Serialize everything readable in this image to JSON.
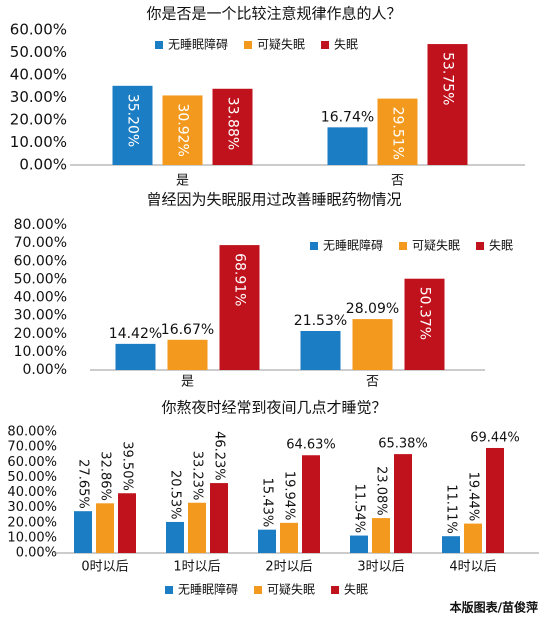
{
  "chart_data": [
    {
      "type": "bar",
      "title": "你是否是一个比较注意规律作息的人？",
      "categories": [
        "是",
        "否"
      ],
      "series": [
        {
          "name": "无睡眠障碍",
          "color": "#1b7dc4",
          "values": [
            35.2,
            16.74
          ],
          "value_labels": [
            "35.20%",
            "16.74%"
          ]
        },
        {
          "name": "可疑失眠",
          "color": "#f39a1e",
          "values": [
            30.92,
            29.51
          ],
          "value_labels": [
            "30.92%",
            "29.51%"
          ]
        },
        {
          "name": "失眠",
          "color": "#c0121c",
          "values": [
            33.88,
            53.75
          ],
          "value_labels": [
            "33.88%",
            "53.75%"
          ]
        }
      ],
      "ylim": [
        0,
        60
      ],
      "yticks": [
        {
          "value": 0,
          "label": "0.00%"
        },
        {
          "value": 10,
          "label": "10.00%"
        },
        {
          "value": 20,
          "label": "20.00%"
        },
        {
          "value": 30,
          "label": "30.00%"
        },
        {
          "value": 40,
          "label": "40.00%"
        },
        {
          "value": 50,
          "label": "50.00%"
        },
        {
          "value": 60,
          "label": "60.00%"
        }
      ],
      "grid": false,
      "legend": "top"
    },
    {
      "type": "bar",
      "title": "曾经因为失眠服用过改善睡眠药物情况",
      "categories": [
        "是",
        "否"
      ],
      "series": [
        {
          "name": "无睡眠障碍",
          "color": "#1b7dc4",
          "values": [
            14.42,
            21.53
          ],
          "value_labels": [
            "14.42%",
            "21.53%"
          ]
        },
        {
          "name": "可疑失眠",
          "color": "#f39a1e",
          "values": [
            16.67,
            28.09
          ],
          "value_labels": [
            "16.67%",
            "28.09%"
          ]
        },
        {
          "name": "失眠",
          "color": "#c0121c",
          "values": [
            68.91,
            50.37
          ],
          "value_labels": [
            "68.91%",
            "50.37%"
          ]
        }
      ],
      "ylim": [
        0,
        80
      ],
      "yticks": [
        {
          "value": 0,
          "label": "0.00%"
        },
        {
          "value": 10,
          "label": "10.00%"
        },
        {
          "value": 20,
          "label": "20.00%"
        },
        {
          "value": 30,
          "label": "30.00%"
        },
        {
          "value": 40,
          "label": "40.00%"
        },
        {
          "value": 50,
          "label": "50.00%"
        },
        {
          "value": 60,
          "label": "60.00%"
        },
        {
          "value": 70,
          "label": "70.00%"
        },
        {
          "value": 80,
          "label": "80.00%"
        }
      ],
      "grid": false,
      "legend": "top-right"
    },
    {
      "type": "bar",
      "title": "你熬夜时经常到夜间几点才睡觉？",
      "categories": [
        "0时以后",
        "1时以后",
        "2时以后",
        "3时以后",
        "4时以后"
      ],
      "series": [
        {
          "name": "无睡眠障碍",
          "color": "#1b7dc4",
          "values": [
            27.65,
            20.53,
            15.43,
            11.54,
            11.11
          ],
          "value_labels": [
            "27.65%",
            "20.53%",
            "15.43%",
            "11.54%",
            "11.11%"
          ]
        },
        {
          "name": "可疑失眠",
          "color": "#f39a1e",
          "values": [
            32.86,
            33.23,
            19.94,
            23.08,
            19.44
          ],
          "value_labels": [
            "32.86%",
            "33.23%",
            "19.94%",
            "23.08%",
            "19.44%"
          ]
        },
        {
          "name": "失眠",
          "color": "#c0121c",
          "values": [
            39.5,
            46.23,
            64.63,
            65.38,
            69.44
          ],
          "value_labels": [
            "39.50%",
            "46.23%",
            "64.63%",
            "65.38%",
            "69.44%"
          ]
        }
      ],
      "ylim": [
        0,
        80
      ],
      "yticks": [
        {
          "value": 0,
          "label": "0.00%"
        },
        {
          "value": 10,
          "label": "10.00%"
        },
        {
          "value": 20,
          "label": "20.00%"
        },
        {
          "value": 30,
          "label": "30.00%"
        },
        {
          "value": 40,
          "label": "40.00%"
        },
        {
          "value": 50,
          "label": "50.00%"
        },
        {
          "value": 60,
          "label": "60.00%"
        },
        {
          "value": 70,
          "label": "70.00%"
        },
        {
          "value": 80,
          "label": "80.00%"
        }
      ],
      "grid": false,
      "legend": "bottom"
    }
  ],
  "credit": "本版图表/苗俊萍"
}
